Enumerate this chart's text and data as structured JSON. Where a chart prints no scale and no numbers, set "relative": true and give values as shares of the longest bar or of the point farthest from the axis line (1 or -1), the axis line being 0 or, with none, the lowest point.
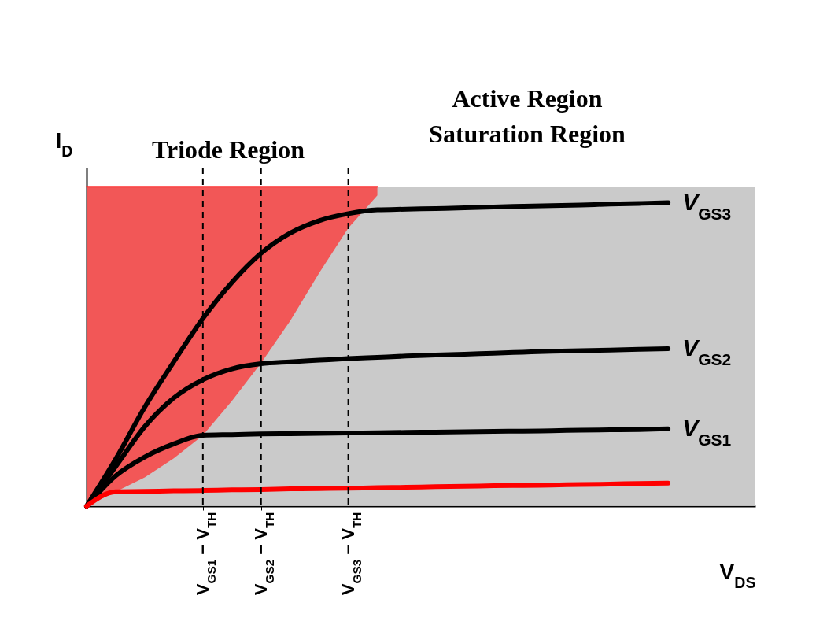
{
  "chart_data": {
    "type": "line",
    "relative": true,
    "xlabel": "V$_{DS}$",
    "ylabel": "I$_{D}$",
    "categories": [
      null,
      null,
      null,
      null,
      "V$_{GS1}$ − V$_{TH}$",
      null,
      "V$_{GS2}$ − V$_{TH}$",
      null,
      null,
      "V$_{GS3}$ − V$_{TH}$",
      null,
      null,
      null,
      null,
      null,
      null,
      null,
      null,
      null,
      null,
      null,
      null,
      null,
      null
    ],
    "series": [
      {
        "type": "line",
        "color": "#ff3030",
        "values": [
          1,
          1,
          1,
          1,
          1,
          1,
          1,
          1,
          1,
          1,
          1,
          null,
          null,
          null,
          null,
          null,
          null,
          null,
          null,
          null,
          null,
          null,
          null,
          null
        ],
        "upper": [
          1,
          1,
          1,
          1,
          1,
          1,
          1,
          1,
          1,
          1,
          1,
          null,
          null,
          null,
          null,
          null,
          null,
          null,
          null,
          null,
          null,
          null,
          null,
          null
        ],
        "lower": [
          0,
          0.045,
          0.09,
          0.15,
          0.222,
          0.33,
          0.448,
          0.58,
          0.73,
          0.871,
          0.973,
          null,
          null,
          null,
          null,
          null,
          null,
          null,
          null,
          null,
          null,
          null,
          null,
          null
        ]
      },
      {
        "name": "V$_{GS3}$",
        "color": "#000000",
        "values": [
          0,
          0.147,
          0.31,
          0.452,
          0.588,
          0.701,
          0.792,
          0.855,
          0.894,
          0.916,
          0.928,
          0.93,
          0.932,
          0.934,
          0.937,
          0.939,
          0.941,
          0.943,
          0.946,
          0.948,
          0.95,
          null,
          null,
          null
        ]
      },
      {
        "name": "V$_{GS2}$",
        "color": "#000000",
        "values": [
          0,
          0.124,
          0.249,
          0.339,
          0.396,
          0.43,
          0.446,
          0.452,
          0.457,
          0.462,
          0.466,
          0.47,
          0.473,
          0.476,
          0.479,
          0.482,
          0.485,
          0.487,
          0.489,
          0.491,
          0.493,
          null,
          null,
          null
        ]
      },
      {
        "name": "V$_{GS1}$",
        "color": "#000000",
        "values": [
          0,
          0.095,
          0.154,
          0.195,
          0.222,
          0.224,
          0.226,
          0.227,
          0.228,
          0.229,
          0.23,
          0.231,
          0.232,
          0.233,
          0.234,
          0.235,
          0.236,
          0.238,
          0.239,
          0.24,
          0.242,
          null,
          null,
          null
        ]
      },
      {
        "color": "#ff0000",
        "values": [
          0,
          0.045,
          0.046,
          0.048,
          0.049,
          0.051,
          0.052,
          0.054,
          0.055,
          0.056,
          0.058,
          0.059,
          0.061,
          0.062,
          0.064,
          0.065,
          0.066,
          0.068,
          0.069,
          0.071,
          0.072,
          null,
          null,
          null
        ]
      }
    ],
    "ref_lines": [
      {
        "axis": "x",
        "value": "V$_{GS1}$ − V$_{TH}$",
        "line_style": "dashed"
      },
      {
        "axis": "x",
        "value": "V$_{GS2}$ − V$_{TH}$",
        "line_style": "dashed"
      },
      {
        "axis": "x",
        "value": "V$_{GS3}$ − V$_{TH}$",
        "line_style": "dashed"
      }
    ],
    "bands": [
      {
        "axis": "y",
        "from": 0,
        "to": 1,
        "color": "#c4c4c4"
      }
    ],
    "annotations": [
      "Triode Region",
      "Active Region",
      "Saturation Region"
    ],
    "grid": false,
    "line_style": "solid",
    "marker": "none"
  }
}
